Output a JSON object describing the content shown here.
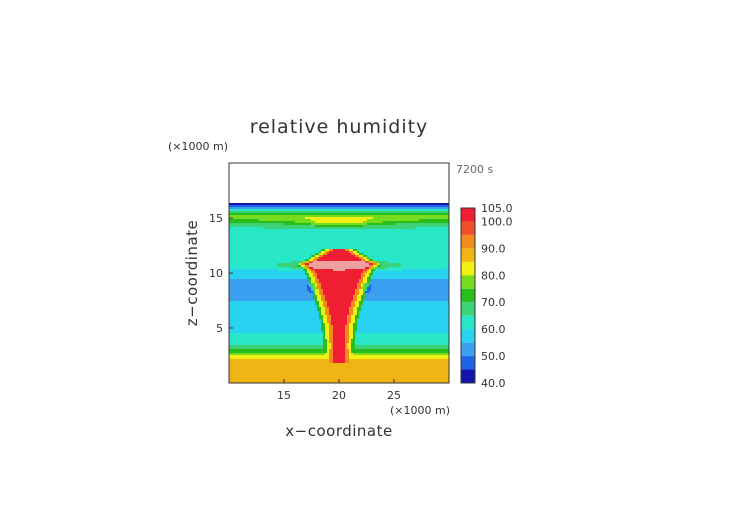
{
  "chart_data": {
    "type": "heatmap",
    "title": "relative humidity",
    "xlabel": "x−coordinate",
    "ylabel": "z−coordinate",
    "x_unit": "(×1000 m)",
    "y_unit": "(×1000 m)",
    "time_label": "7200 s",
    "xlim": [
      10,
      30
    ],
    "ylim": [
      0,
      20
    ],
    "x_ticks": [
      15,
      20,
      25
    ],
    "y_ticks": [
      5,
      10,
      15
    ],
    "colorbar": {
      "tick_labels": [
        "40.0",
        "50.0",
        "60.0",
        "70.0",
        "80.0",
        "90.0",
        "100.0",
        "105.0"
      ],
      "tick_values": [
        40,
        50,
        60,
        70,
        80,
        90,
        100,
        105
      ],
      "levels": [
        40,
        45,
        50,
        55,
        60,
        65,
        70,
        75,
        80,
        85,
        90,
        95,
        100,
        105
      ],
      "colors": [
        "#1414aa",
        "#1e64e6",
        "#3ca0f0",
        "#28d2f0",
        "#28e6c8",
        "#3cd278",
        "#28be1e",
        "#78dc1e",
        "#f0f014",
        "#f0b414",
        "#f08c1e",
        "#f05028",
        "#f01e32",
        "#f0a0a0"
      ]
    },
    "profile_rh": [
      {
        "z": 0.5,
        "rh": 85
      },
      {
        "z": 1.5,
        "rh": 88
      },
      {
        "z": 2.2,
        "rh": 85
      },
      {
        "z": 2.8,
        "rh": 75
      },
      {
        "z": 3.5,
        "rh": 63
      },
      {
        "z": 4.5,
        "rh": 60
      },
      {
        "z": 5.5,
        "rh": 57
      },
      {
        "z": 6.5,
        "rh": 59
      },
      {
        "z": 7.5,
        "rh": 55
      },
      {
        "z": 8.5,
        "rh": 53
      },
      {
        "z": 9.5,
        "rh": 55
      },
      {
        "z": 10.5,
        "rh": 60
      },
      {
        "z": 11.5,
        "rh": 62
      },
      {
        "z": 12.5,
        "rh": 60
      },
      {
        "z": 13.5,
        "rh": 62
      },
      {
        "z": 14.3,
        "rh": 66
      },
      {
        "z": 15.0,
        "rh": 78
      },
      {
        "z": 15.5,
        "rh": 70
      },
      {
        "z": 15.9,
        "rh": 55
      },
      {
        "z": 16.2,
        "rh": 42
      }
    ],
    "plume": {
      "center_x": 20,
      "base_z": 1.8,
      "top_z": 12.2,
      "anvil_z": 10.8,
      "anvil_half_width": 2.7,
      "stem_half_width": 0.6,
      "rh_core": 100
    }
  }
}
